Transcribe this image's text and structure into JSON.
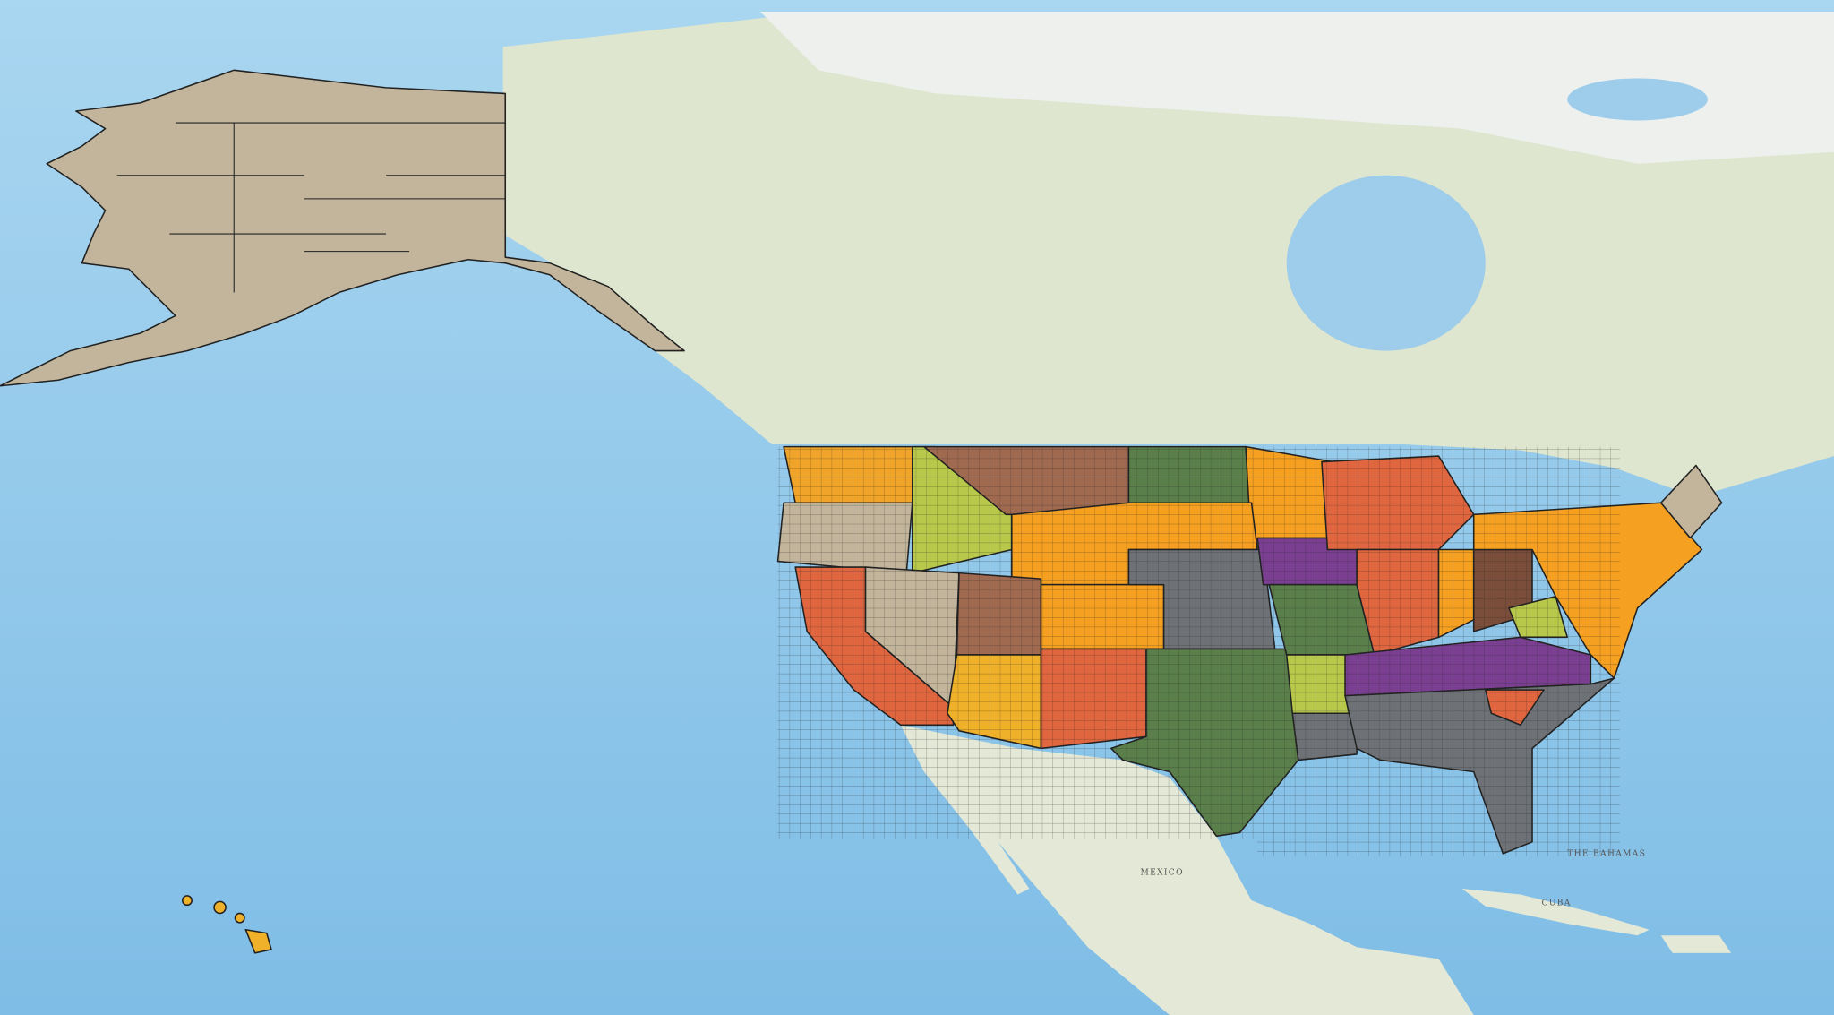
{
  "map": {
    "labels": [
      "MEXICO",
      "THE BAHAMAS",
      "CUBA"
    ]
  }
}
